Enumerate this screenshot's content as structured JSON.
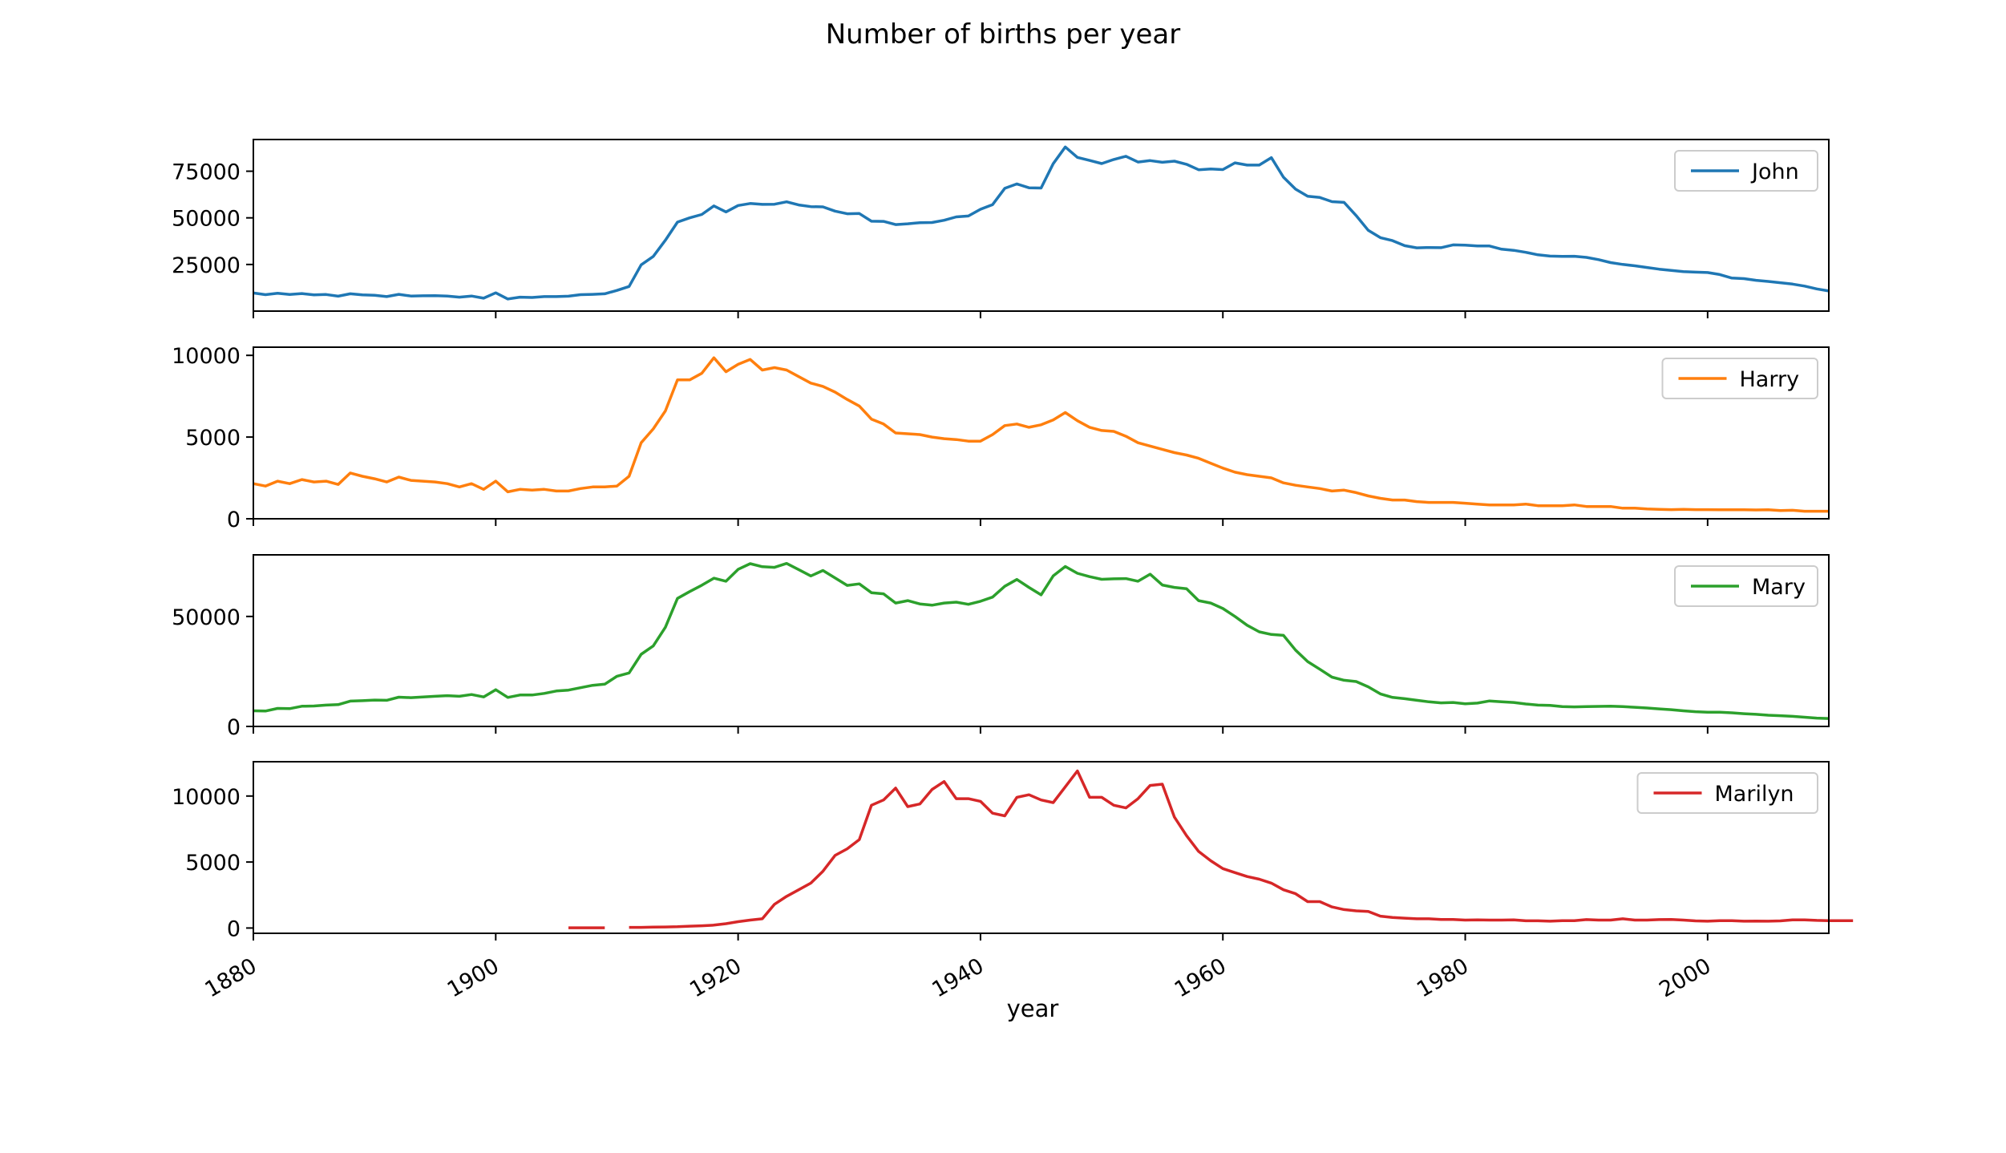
{
  "figure": {
    "title": "Number of births per year",
    "xlabel": "year"
  },
  "chart_data": {
    "type": "line",
    "title": "Number of births per year",
    "xlabel": "year",
    "xlim": [
      1880,
      2010
    ],
    "x_ticks": [
      1880,
      1900,
      1920,
      1940,
      1960,
      1980,
      2000
    ],
    "x_start": 1880,
    "legend_placement": "upper right",
    "grid": false,
    "panels": [
      {
        "name": "John",
        "color": "#1f77b4",
        "ylim": [
          0,
          92000
        ],
        "y_ticks": [
          25000,
          50000,
          75000
        ],
        "values": [
          9700,
          8800,
          9600,
          8900,
          9400,
          8700,
          8900,
          8000,
          9300,
          8700,
          8500,
          7800,
          9000,
          8100,
          8200,
          8300,
          8100,
          7500,
          8100,
          6900,
          9800,
          6500,
          7500,
          7300,
          7800,
          7800,
          8000,
          8800,
          9000,
          9300,
          11100,
          13200,
          24800,
          29300,
          38000,
          47700,
          50000,
          51800,
          56400,
          53200,
          56600,
          57700,
          57200,
          57300,
          58600,
          56900,
          56000,
          55900,
          53600,
          52200,
          52300,
          48200,
          48100,
          46400,
          46800,
          47400,
          47500,
          48700,
          50500,
          51000,
          54600,
          57100,
          65800,
          68200,
          66100,
          66000,
          79000,
          88000,
          82400,
          80800,
          79100,
          81300,
          83000,
          79900,
          80700,
          79800,
          80400,
          78700,
          75800,
          76200,
          75900,
          79500,
          78300,
          78300,
          82300,
          71800,
          65400,
          61600,
          60900,
          58700,
          58300,
          51200,
          43300,
          39400,
          37800,
          35100,
          33900,
          34100,
          34000,
          35500,
          35400,
          34900,
          34900,
          33200,
          32600,
          31500,
          30200,
          29500,
          29300,
          29400,
          28800,
          27600,
          26000,
          25000,
          24300,
          23400,
          22500,
          21800,
          21200,
          20900,
          20700,
          19600,
          17700,
          17400,
          16500,
          15900,
          15200,
          14500,
          13400,
          11900,
          10800
        ]
      },
      {
        "name": "Harry",
        "color": "#ff7f0e",
        "ylim": [
          0,
          10500
        ],
        "y_ticks": [
          0,
          5000,
          10000
        ],
        "values": [
          2150,
          2000,
          2300,
          2150,
          2400,
          2250,
          2300,
          2100,
          2800,
          2600,
          2450,
          2250,
          2550,
          2350,
          2300,
          2250,
          2150,
          1950,
          2150,
          1800,
          2300,
          1650,
          1800,
          1750,
          1800,
          1700,
          1700,
          1850,
          1950,
          1950,
          2000,
          2600,
          4650,
          5500,
          6600,
          8500,
          8500,
          8900,
          9850,
          9000,
          9450,
          9750,
          9100,
          9250,
          9100,
          8700,
          8300,
          8100,
          7750,
          7300,
          6900,
          6100,
          5800,
          5250,
          5200,
          5150,
          5000,
          4900,
          4850,
          4750,
          4750,
          5150,
          5700,
          5800,
          5600,
          5750,
          6050,
          6500,
          6000,
          5600,
          5400,
          5350,
          5050,
          4650,
          4450,
          4250,
          4050,
          3900,
          3700,
          3400,
          3100,
          2850,
          2700,
          2600,
          2500,
          2200,
          2050,
          1950,
          1850,
          1700,
          1750,
          1600,
          1400,
          1250,
          1150,
          1150,
          1050,
          1000,
          1000,
          1000,
          950,
          900,
          850,
          850,
          850,
          900,
          800,
          800,
          800,
          850,
          750,
          750,
          750,
          650,
          650,
          600,
          580,
          560,
          580,
          560,
          560,
          550,
          550,
          550,
          540,
          550,
          500,
          520,
          460,
          460,
          460
        ]
      },
      {
        "name": "Mary",
        "color": "#2ca02c",
        "ylim": [
          0,
          78000
        ],
        "y_ticks": [
          0,
          50000
        ],
        "values": [
          7100,
          7000,
          8200,
          8100,
          9200,
          9300,
          9700,
          9900,
          11500,
          11700,
          12000,
          11900,
          13300,
          13100,
          13400,
          13700,
          14000,
          13700,
          14500,
          13400,
          16700,
          13200,
          14300,
          14300,
          15000,
          16100,
          16500,
          17600,
          18700,
          19200,
          22800,
          24300,
          32800,
          36600,
          45100,
          58200,
          61300,
          64200,
          67400,
          66000,
          71400,
          74000,
          72600,
          72300,
          74100,
          71300,
          68400,
          70900,
          67500,
          64100,
          64800,
          60800,
          60300,
          56100,
          57200,
          55700,
          55100,
          56100,
          56500,
          55500,
          56900,
          58800,
          63700,
          66800,
          63200,
          59800,
          68400,
          72700,
          69600,
          68100,
          66900,
          67100,
          67200,
          66000,
          69200,
          64300,
          63200,
          62600,
          57200,
          56100,
          53600,
          50000,
          46000,
          43000,
          41800,
          41400,
          34700,
          29500,
          26000,
          22400,
          21000,
          20400,
          18000,
          14800,
          13200,
          12600,
          11900,
          11200,
          10700,
          10900,
          10300,
          10600,
          11600,
          11200,
          10900,
          10200,
          9700,
          9600,
          9000,
          8900,
          9000,
          9100,
          9200,
          9000,
          8700,
          8400,
          8000,
          7600,
          7100,
          6700,
          6500,
          6500,
          6200,
          5800,
          5500,
          5100,
          4900,
          4600,
          4200,
          3800,
          3600
        ]
      },
      {
        "name": "Marilyn",
        "color": "#d62728",
        "ylim": [
          -400,
          12600
        ],
        "y_ticks": [
          0,
          5000,
          10000
        ],
        "values": [
          null,
          null,
          null,
          null,
          null,
          null,
          null,
          null,
          null,
          null,
          null,
          null,
          null,
          null,
          null,
          null,
          null,
          null,
          null,
          null,
          null,
          null,
          null,
          null,
          null,
          null,
          20,
          20,
          20,
          20,
          null,
          50,
          50,
          70,
          80,
          100,
          140,
          170,
          220,
          330,
          480,
          600,
          700,
          1800,
          2400,
          2900,
          3400,
          4300,
          5500,
          6000,
          6700,
          9300,
          9700,
          10600,
          9200,
          9400,
          10500,
          11100,
          9800,
          9800,
          9600,
          8700,
          8500,
          9900,
          10100,
          9700,
          9500,
          10700,
          11900,
          9900,
          9900,
          9300,
          9100,
          9800,
          10800,
          10900,
          8400,
          7000,
          5800,
          5100,
          4500,
          4200,
          3900,
          3700,
          3400,
          2900,
          2600,
          2000,
          2000,
          1600,
          1400,
          1300,
          1250,
          900,
          800,
          750,
          700,
          700,
          650,
          650,
          600,
          620,
          600,
          600,
          620,
          550,
          550,
          520,
          560,
          560,
          640,
          600,
          600,
          700,
          600,
          600,
          640,
          650,
          600,
          540,
          520,
          560,
          560,
          520,
          530,
          520,
          540,
          620,
          620,
          580,
          560,
          560,
          560
        ]
      }
    ]
  }
}
